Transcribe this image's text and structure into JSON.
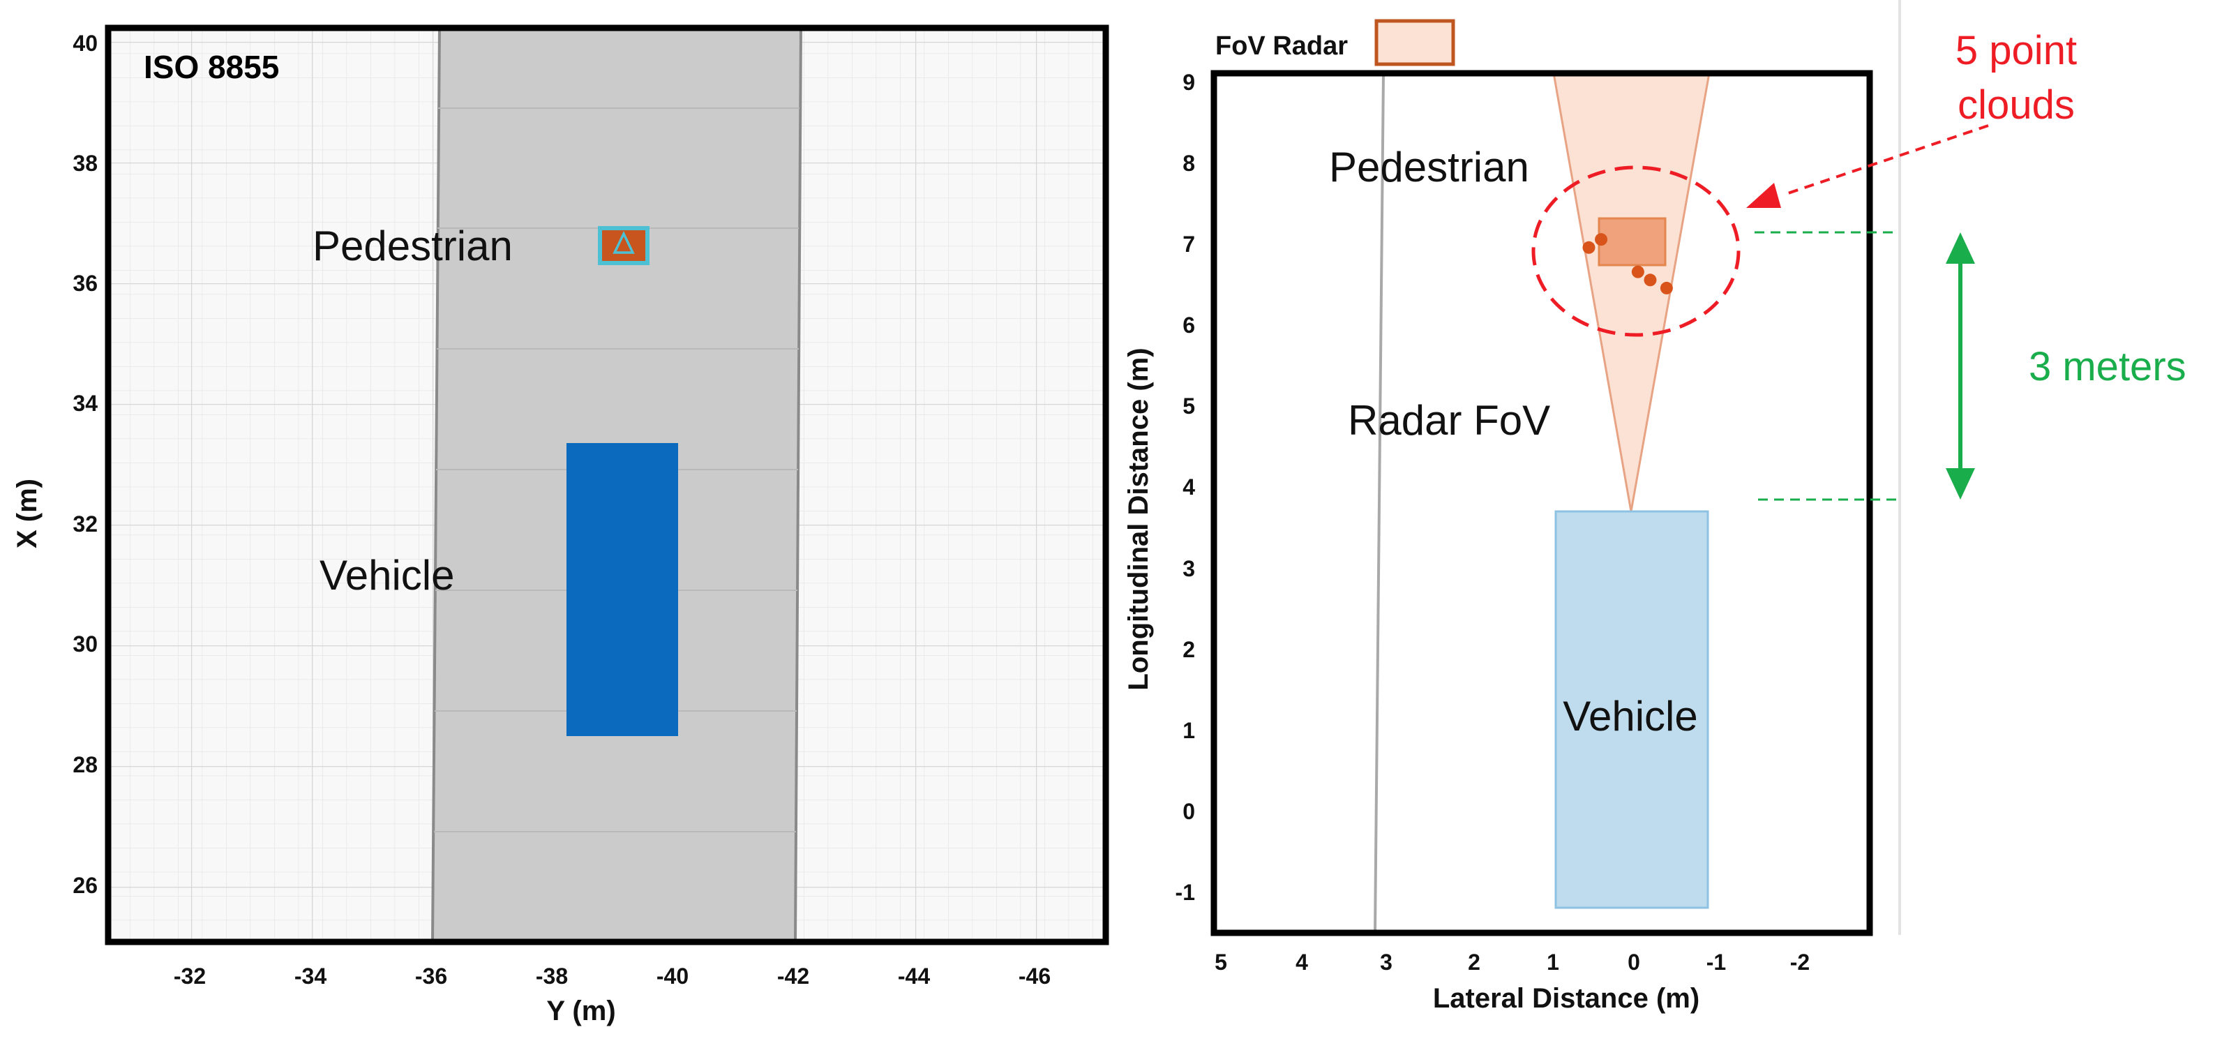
{
  "left_panel": {
    "title": "ISO 8855",
    "xlabel": "Y (m)",
    "ylabel": "X (m)",
    "x_ticks": [
      "-32",
      "-34",
      "-36",
      "-38",
      "-40",
      "-42",
      "-44",
      "-46"
    ],
    "y_ticks": [
      "40",
      "38",
      "36",
      "34",
      "32",
      "30",
      "28",
      "26"
    ],
    "pedestrian_label": "Pedestrian",
    "vehicle_label": "Vehicle",
    "colors": {
      "road": "#cbcbcb",
      "vehicle": "#0b69be",
      "pedestrian_fill": "#c8541e",
      "pedestrian_outline": "#4ec0d4"
    }
  },
  "right_panel": {
    "legend_label": "FoV Radar",
    "xlabel": "Lateral Distance (m)",
    "ylabel": "Longitudinal Distance (m)",
    "x_ticks": [
      "5",
      "4",
      "3",
      "2",
      "1",
      "0",
      "-1",
      "-2"
    ],
    "y_ticks": [
      "9",
      "8",
      "7",
      "6",
      "5",
      "4",
      "3",
      "2",
      "1",
      "0",
      "-1"
    ],
    "pedestrian_label": "Pedestrian",
    "radar_fov_label": "Radar FoV",
    "vehicle_label": "Vehicle",
    "annotation_point_clouds": [
      "5 point",
      "clouds"
    ],
    "annotation_distance": "3 meters",
    "point_cloud": [
      {
        "lateral": 0.55,
        "longitudinal": 7.05
      },
      {
        "lateral": 0.4,
        "longitudinal": 7.15
      },
      {
        "lateral": -0.05,
        "longitudinal": 6.75
      },
      {
        "lateral": -0.2,
        "longitudinal": 6.65
      },
      {
        "lateral": -0.4,
        "longitudinal": 6.55
      }
    ],
    "colors": {
      "fov": "#fbe2d4",
      "vehicle": "#bfdcee",
      "points": "#d8541a",
      "annotation_red": "#ee1c24",
      "annotation_green": "#1aad4b"
    }
  }
}
